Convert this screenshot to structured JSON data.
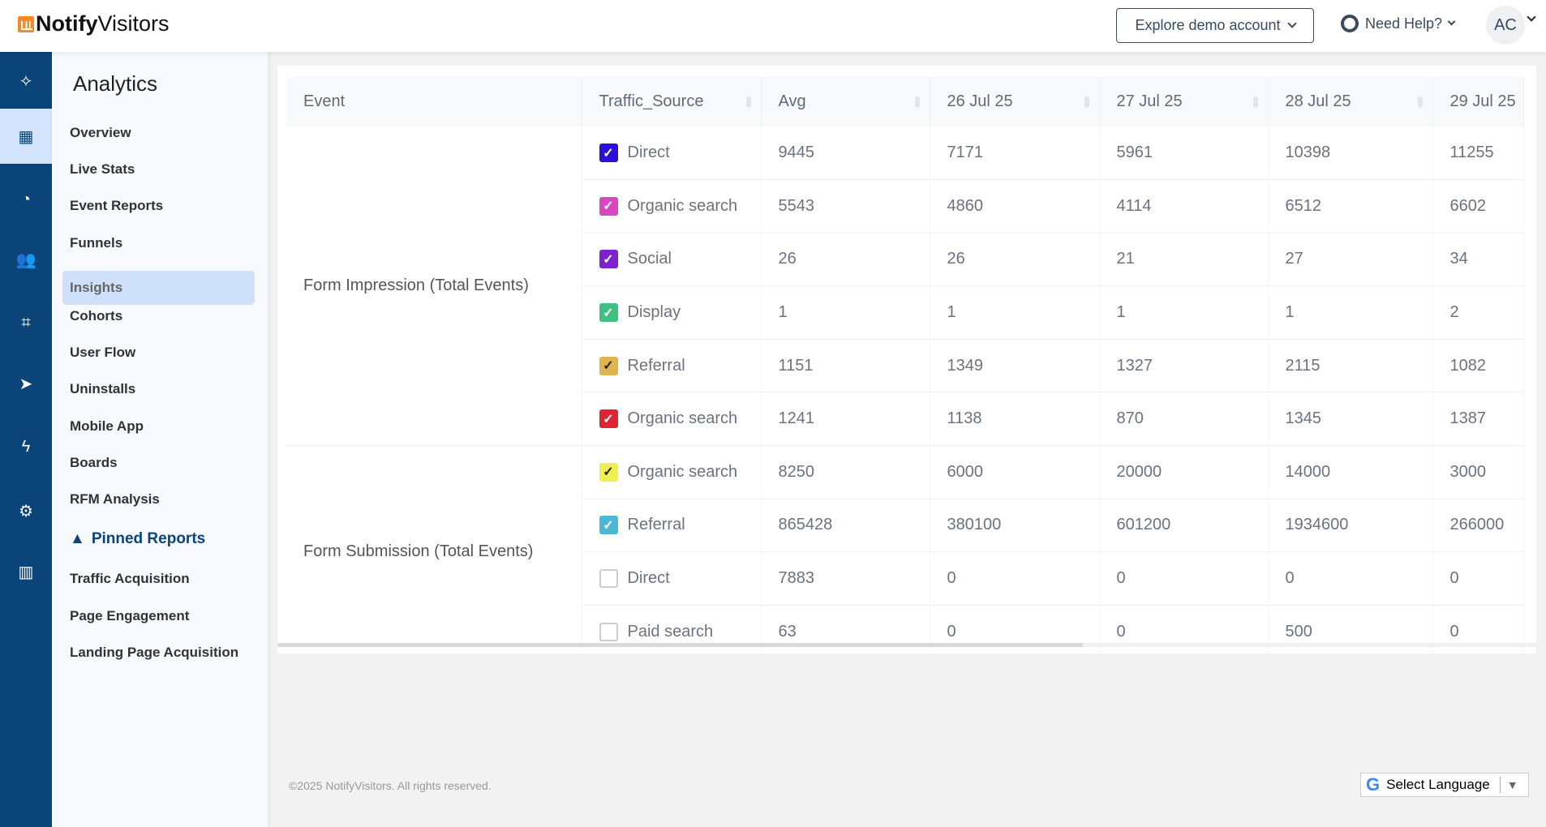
{
  "header": {
    "logo_bold": "Notify",
    "logo_light": "Visitors",
    "explore_label": "Explore demo account",
    "help_label": "Need Help?",
    "avatar_initials": "AC"
  },
  "rail": [
    {
      "icon": "sparkle-icon"
    },
    {
      "icon": "grid-icon",
      "active": true
    },
    {
      "icon": "dashboard-icon"
    },
    {
      "icon": "users-icon"
    },
    {
      "icon": "sitemap-icon"
    },
    {
      "icon": "paper-plane-icon"
    },
    {
      "icon": "bolt-icon"
    },
    {
      "icon": "gear-icon"
    },
    {
      "icon": "building-icon"
    }
  ],
  "sidebar": {
    "title": "Analytics",
    "items": [
      "Overview",
      "Live Stats",
      "Event Reports",
      "Funnels",
      "Insights",
      "Cohorts",
      "User Flow",
      "Uninstalls",
      "Mobile App",
      "Boards",
      "RFM Analysis"
    ],
    "active": "Insights",
    "pinned_label": "Pinned Reports",
    "pinned_items": [
      "Traffic Acquisition",
      "Page Engagement",
      "Landing Page Acquisition"
    ]
  },
  "table": {
    "columns": [
      "Event",
      "Traffic_Source",
      "Avg",
      "26 Jul 25",
      "27 Jul 25",
      "28 Jul 25",
      "29 Jul 25"
    ],
    "groups": [
      {
        "event": "Form Impression (Total Events)",
        "rows": [
          {
            "source": "Direct",
            "checked": true,
            "color": "#2b10d8",
            "values": [
              "9445",
              "7171",
              "5961",
              "10398",
              "11255"
            ]
          },
          {
            "source": "Organic search",
            "checked": true,
            "color": "#d946c0",
            "values": [
              "5543",
              "4860",
              "4114",
              "6512",
              "6602"
            ]
          },
          {
            "source": "Social",
            "checked": true,
            "color": "#7e22ce",
            "values": [
              "26",
              "26",
              "21",
              "27",
              "34"
            ]
          },
          {
            "source": "Display",
            "checked": true,
            "color": "#3fc07f",
            "values": [
              "1",
              "1",
              "1",
              "1",
              "2"
            ]
          },
          {
            "source": "Referral",
            "checked": true,
            "color": "#e0b44c",
            "dark_check": true,
            "values": [
              "1151",
              "1349",
              "1327",
              "2115",
              "1082"
            ]
          },
          {
            "source": "Organic search",
            "checked": true,
            "color": "#dc2636",
            "values": [
              "1241",
              "1138",
              "870",
              "1345",
              "1387"
            ]
          }
        ]
      },
      {
        "event": "Form Submission (Total Events)",
        "rows": [
          {
            "source": "Organic search",
            "checked": true,
            "color": "#eef050",
            "dark_check": true,
            "values": [
              "8250",
              "6000",
              "20000",
              "14000",
              "3000"
            ]
          },
          {
            "source": "Referral",
            "checked": true,
            "color": "#4bb8d8",
            "values": [
              "865428",
              "380100",
              "601200",
              "1934600",
              "266000"
            ]
          },
          {
            "source": "Direct",
            "checked": false,
            "values": [
              "7883",
              "0",
              "0",
              "0",
              "0"
            ]
          },
          {
            "source": "Paid search",
            "checked": false,
            "values": [
              "63",
              "0",
              "0",
              "500",
              "0"
            ]
          }
        ]
      }
    ]
  },
  "footer": {
    "copyright": "©2025 NotifyVisitors. All rights reserved.",
    "language_label": "Select Language"
  }
}
